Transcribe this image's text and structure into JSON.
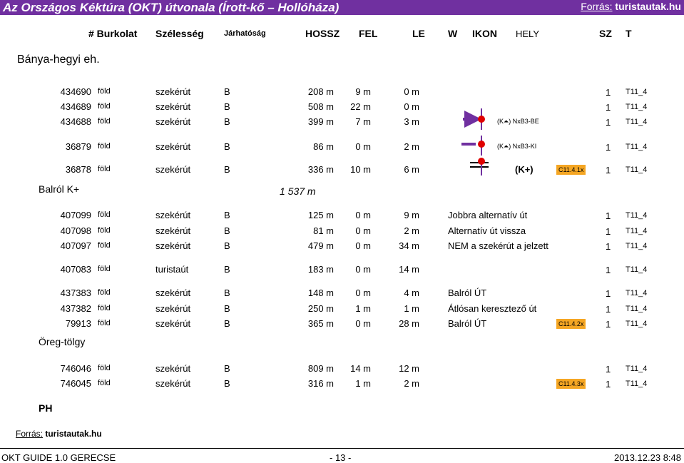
{
  "title": "Az Országos Kéktúra (OKT) útvonala (Írott-kő – Hollóháza)",
  "source_top": {
    "label": "Forrás:",
    "site": "turistautak.hu"
  },
  "headers": [
    "# Burkolat",
    "Szélesség",
    "Járhatóság",
    "HOSSZ",
    "FEL",
    "LE",
    "W",
    "IKON",
    "HELY",
    "SZ",
    "T"
  ],
  "section_start": "Bánya-hegyi eh.",
  "groups": [
    {
      "rows": [
        {
          "id": "434690",
          "surface": "föld",
          "width": "szekérút",
          "pass": "B",
          "len": "208 m",
          "up": "9 m",
          "down": "0 m",
          "w": "",
          "sign": "",
          "code": "",
          "sz": "1",
          "t": "T11_4"
        },
        {
          "id": "434689",
          "surface": "föld",
          "width": "szekérút",
          "pass": "B",
          "len": "508 m",
          "up": "22 m",
          "down": "0 m",
          "w": "",
          "sign": "",
          "code": "",
          "sz": "1",
          "t": "T11_4"
        },
        {
          "id": "434688",
          "surface": "föld",
          "width": "szekérút",
          "pass": "B",
          "len": "399 m",
          "up": "7 m",
          "down": "3 m",
          "w": "",
          "sign": "(K⏶) NxB3-BE",
          "code": "",
          "sz": "1",
          "t": "T11_4"
        }
      ]
    },
    {
      "rows": [
        {
          "id": "36879",
          "surface": "föld",
          "width": "szekérút",
          "pass": "B",
          "len": "86 m",
          "up": "0 m",
          "down": "2 m",
          "w": "",
          "sign": "(K⏶) NxB3-KI",
          "code": "",
          "sz": "1",
          "t": "T11_4"
        }
      ]
    },
    {
      "rows": [
        {
          "id": "36878",
          "surface": "föld",
          "width": "szekérút",
          "pass": "B",
          "len": "336 m",
          "up": "10 m",
          "down": "6 m",
          "w": "(K+)",
          "sign": "",
          "code": "C11.4.1x",
          "sz": "1",
          "t": "T11_4"
        }
      ]
    }
  ],
  "balrol": {
    "label": "Balról K+",
    "total": "1 537 m"
  },
  "groups2": [
    {
      "rows": [
        {
          "id": "407099",
          "surface": "föld",
          "width": "szekérút",
          "pass": "B",
          "len": "125 m",
          "up": "0 m",
          "down": "9 m",
          "w": "Jobbra alternatív út",
          "code": "",
          "sz": "1",
          "t": "T11_4"
        },
        {
          "id": "407098",
          "surface": "föld",
          "width": "szekérút",
          "pass": "B",
          "len": "81 m",
          "up": "0 m",
          "down": "2 m",
          "w": "Alternatív út vissza",
          "code": "",
          "sz": "1",
          "t": "T11_4"
        },
        {
          "id": "407097",
          "surface": "föld",
          "width": "szekérút",
          "pass": "B",
          "len": "479 m",
          "up": "0 m",
          "down": "34 m",
          "w": "NEM a szekérút a jelzett",
          "code": "",
          "sz": "1",
          "t": "T11_4"
        }
      ]
    },
    {
      "rows": [
        {
          "id": "407083",
          "surface": "föld",
          "width": "turistaút",
          "pass": "B",
          "len": "183 m",
          "up": "0 m",
          "down": "14 m",
          "w": "",
          "code": "",
          "sz": "1",
          "t": "T11_4"
        }
      ]
    },
    {
      "rows": [
        {
          "id": "437383",
          "surface": "föld",
          "width": "szekérút",
          "pass": "B",
          "len": "148 m",
          "up": "0 m",
          "down": "4 m",
          "w": "Balról ÚT",
          "code": "",
          "sz": "1",
          "t": "T11_4"
        },
        {
          "id": "437382",
          "surface": "föld",
          "width": "szekérút",
          "pass": "B",
          "len": "250 m",
          "up": "1 m",
          "down": "1 m",
          "w": "Átlósan keresztező út",
          "code": "",
          "sz": "1",
          "t": "T11_4"
        },
        {
          "id": "79913",
          "surface": "föld",
          "width": "szekérút",
          "pass": "B",
          "len": "365 m",
          "up": "0 m",
          "down": "28 m",
          "w": "Balról ÚT",
          "code": "C11.4.2x",
          "sz": "1",
          "t": "T11_4"
        }
      ]
    }
  ],
  "section_oreg": "Öreg-tölgy",
  "groups3": [
    {
      "rows": [
        {
          "id": "746046",
          "surface": "föld",
          "width": "szekérút",
          "pass": "B",
          "len": "809 m",
          "up": "14 m",
          "down": "12 m",
          "w": "",
          "code": "",
          "sz": "1",
          "t": "T11_4"
        },
        {
          "id": "746045",
          "surface": "föld",
          "width": "szekérút",
          "pass": "B",
          "len": "316 m",
          "up": "1 m",
          "down": "2 m",
          "w": "",
          "code": "C11.4.3x",
          "sz": "1",
          "t": "T11_4"
        }
      ]
    }
  ],
  "section_ph": "PH",
  "source_bottom": {
    "label": "Forrás:",
    "site": "turistautak.hu"
  },
  "footer": {
    "left": "OKT GUIDE 1.0  GERECSE",
    "center": "- 13 -",
    "right": "2013.12.23  8:48"
  }
}
